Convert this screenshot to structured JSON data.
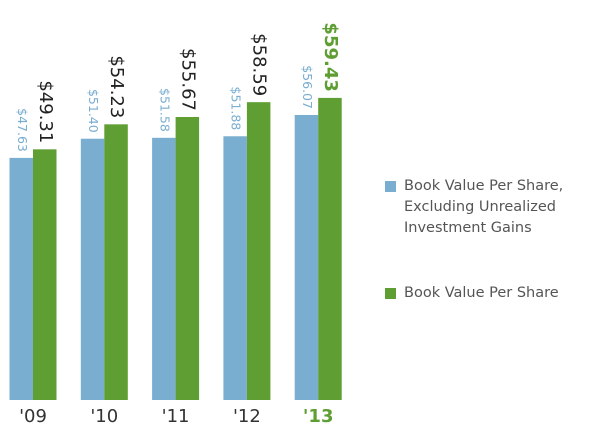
{
  "chart_data": {
    "type": "bar",
    "categories": [
      "'09",
      "'10",
      "'11",
      "'12",
      "'13"
    ],
    "series": [
      {
        "name": "Book Value Per Share, Excluding Unrealized Investment Gains",
        "color": "#7aaed0",
        "values": [
          47.63,
          51.4,
          51.58,
          51.88,
          56.07
        ],
        "value_labels": [
          "$47.63",
          "$51.40",
          "$51.58",
          "$51.88",
          "$56.07"
        ]
      },
      {
        "name": "Book Value Per Share",
        "color": "#5e9e32",
        "values": [
          49.31,
          54.23,
          55.67,
          58.59,
          59.43
        ],
        "value_labels": [
          "$49.31",
          "$54.23",
          "$55.67",
          "$58.59",
          "$59.43"
        ]
      }
    ],
    "ylim": [
      0,
      60
    ],
    "highlight_index": 4
  }
}
